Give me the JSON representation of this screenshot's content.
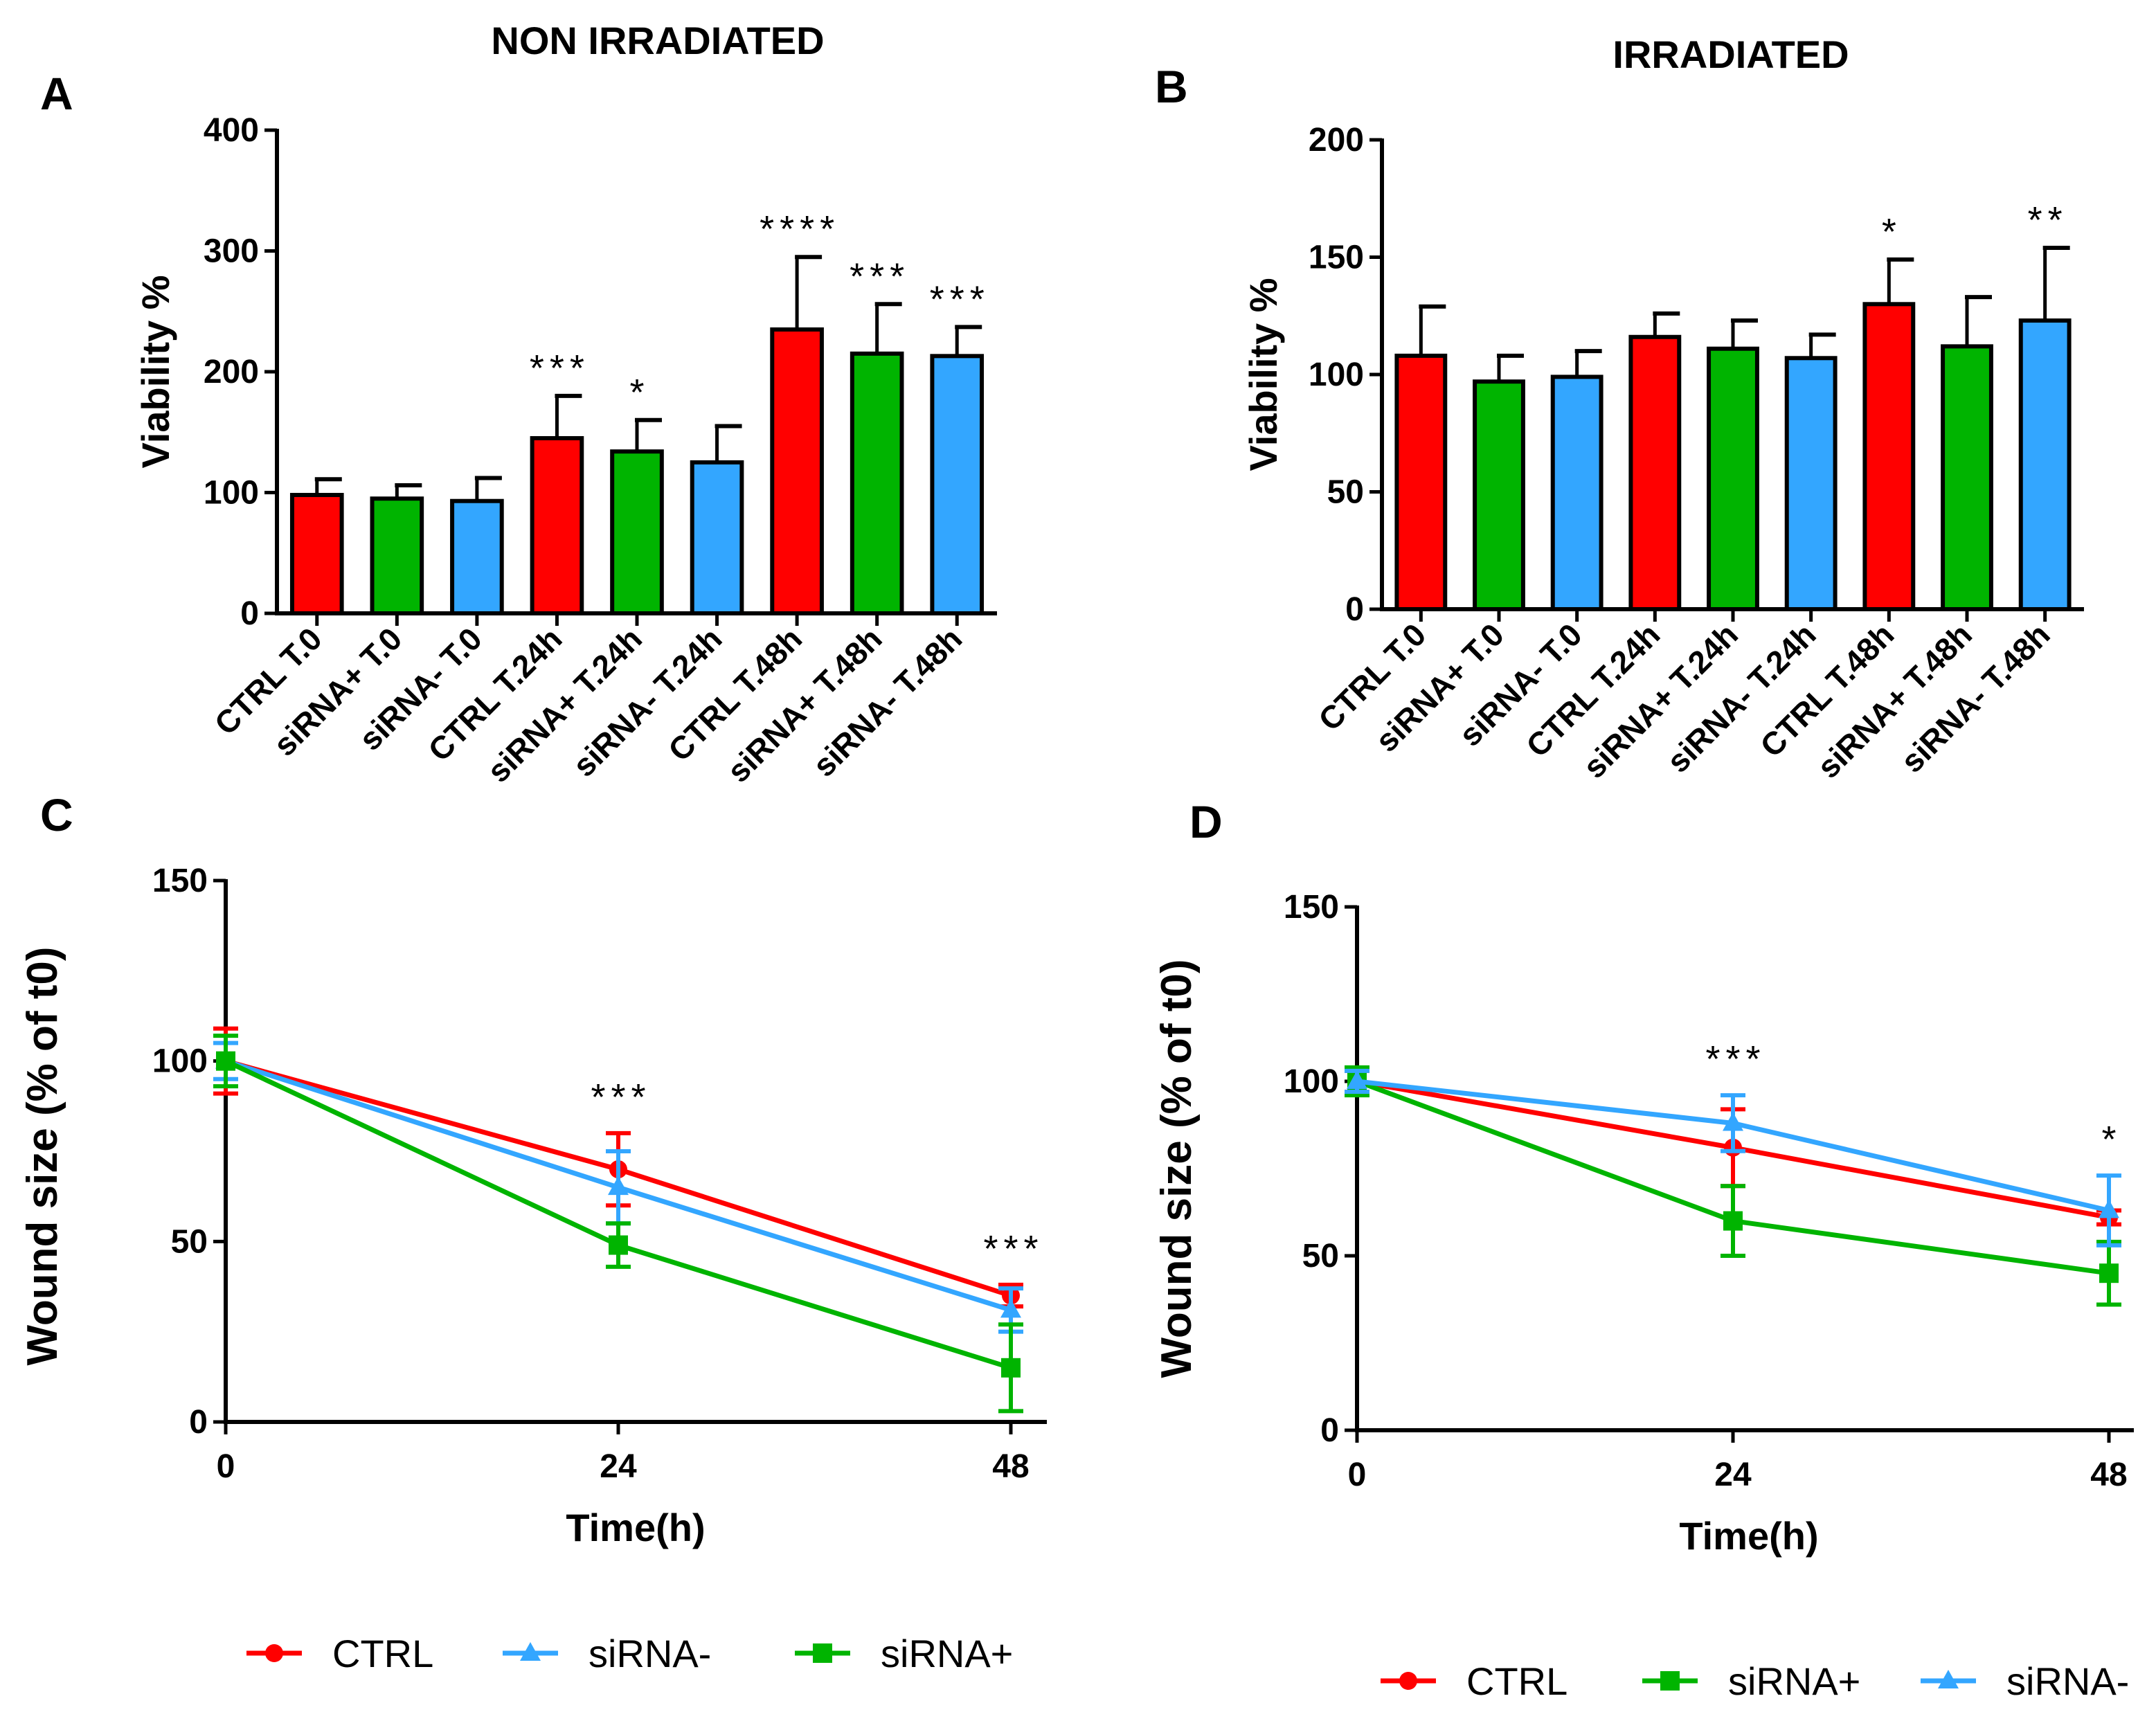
{
  "colors": {
    "red": "#ff0000",
    "green": "#00b400",
    "blue": "#33a6ff",
    "axis": "#000000"
  },
  "icons": {
    "CTRL": "circle-marker",
    "siRNA+": "square-marker",
    "siRNA-": "triangle-marker"
  },
  "chart_data": [
    {
      "panel": "A",
      "type": "bar",
      "title": "NON IRRADIATED",
      "xlabel": "",
      "ylabel": "Viability %",
      "ylim": [
        0,
        400
      ],
      "yticks": [
        0,
        100,
        200,
        300,
        400
      ],
      "categories": [
        "CTRL T.0",
        "siRNA+ T.0",
        "siRNA- T.0",
        "CTRL T.24h",
        "siRNA+ T.24h",
        "siRNA- T.24h",
        "CTRL T.48h",
        "siRNA+ T.48h",
        "siRNA- T.48h"
      ],
      "values": [
        98,
        95,
        93,
        145,
        134,
        125,
        235,
        215,
        213
      ],
      "errors": [
        13,
        11,
        19,
        35,
        26,
        30,
        60,
        41,
        24
      ],
      "bar_colors": [
        "red",
        "green",
        "blue",
        "red",
        "green",
        "blue",
        "red",
        "green",
        "blue"
      ],
      "significance": [
        "",
        "",
        "",
        "***",
        "*",
        "",
        "****",
        "***",
        "***"
      ]
    },
    {
      "panel": "B",
      "type": "bar",
      "title": "IRRADIATED",
      "xlabel": "",
      "ylabel": "Viability %",
      "ylim": [
        0,
        200
      ],
      "yticks": [
        0,
        50,
        100,
        150,
        200
      ],
      "categories": [
        "CTRL T.0",
        "siRNA+ T.0",
        "siRNA- T.0",
        "CTRL T.24h",
        "siRNA+ T.24h",
        "siRNA- T.24h",
        "CTRL T.48h",
        "siRNA+ T.48h",
        "siRNA- T.48h"
      ],
      "values": [
        108,
        97,
        99,
        116,
        111,
        107,
        130,
        112,
        123
      ],
      "errors": [
        21,
        11,
        11,
        10,
        12,
        10,
        19,
        21,
        31
      ],
      "bar_colors": [
        "red",
        "green",
        "blue",
        "red",
        "green",
        "blue",
        "red",
        "green",
        "blue"
      ],
      "significance": [
        "",
        "",
        "",
        "",
        "",
        "",
        "*",
        "",
        "**"
      ]
    },
    {
      "panel": "C",
      "type": "line",
      "title": "",
      "xlabel": "Time(h)",
      "ylabel": "Wound size (% of t0)",
      "x": [
        0,
        24,
        48
      ],
      "xlim": [
        0,
        48
      ],
      "ylim": [
        0,
        150
      ],
      "yticks": [
        0,
        50,
        100,
        150
      ],
      "series": [
        {
          "name": "CTRL",
          "color": "red",
          "marker": "circle",
          "values": [
            100,
            70,
            35
          ],
          "errors": [
            9,
            10,
            3
          ]
        },
        {
          "name": "siRNA-",
          "color": "blue",
          "marker": "triangle",
          "values": [
            100,
            65,
            31
          ],
          "errors": [
            5,
            10,
            6
          ]
        },
        {
          "name": "siRNA+",
          "color": "green",
          "marker": "square",
          "values": [
            100,
            49,
            15
          ],
          "errors": [
            7,
            6,
            12
          ]
        }
      ],
      "significance": [
        {
          "x": 24,
          "label": "***"
        },
        {
          "x": 48,
          "label": "***"
        }
      ],
      "legend": [
        "CTRL",
        "siRNA-",
        "siRNA+"
      ]
    },
    {
      "panel": "D",
      "type": "line",
      "title": "",
      "xlabel": "Time(h)",
      "ylabel": "Wound size (% of t0)",
      "x": [
        0,
        24,
        48
      ],
      "xlim": [
        0,
        48
      ],
      "ylim": [
        0,
        150
      ],
      "yticks": [
        0,
        50,
        100,
        150
      ],
      "series": [
        {
          "name": "CTRL",
          "color": "red",
          "marker": "circle",
          "values": [
            100,
            81,
            61
          ],
          "errors": [
            3,
            11,
            2
          ]
        },
        {
          "name": "siRNA+",
          "color": "green",
          "marker": "square",
          "values": [
            100,
            60,
            45
          ],
          "errors": [
            4,
            10,
            9
          ]
        },
        {
          "name": "siRNA-",
          "color": "blue",
          "marker": "triangle",
          "values": [
            100,
            88,
            63
          ],
          "errors": [
            3,
            8,
            10
          ]
        }
      ],
      "significance": [
        {
          "x": 24,
          "label": "***"
        },
        {
          "x": 48,
          "label": "*"
        }
      ],
      "legend": [
        "CTRL",
        "siRNA+",
        "siRNA-"
      ]
    }
  ]
}
